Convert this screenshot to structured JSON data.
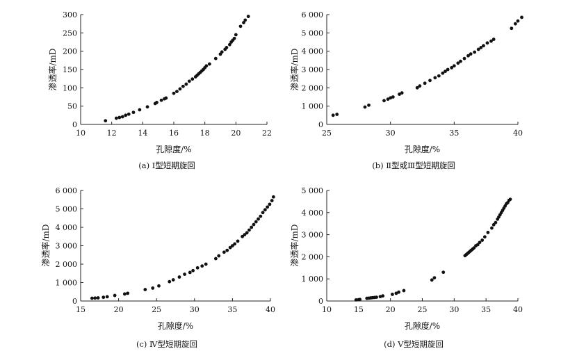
{
  "chart_data": [
    {
      "type": "scatter",
      "caption": "(a) Ⅰ型短期旋回",
      "xlabel": "孔隙度/%",
      "ylabel": "渗透率/mD",
      "xlim": [
        10,
        22
      ],
      "ylim": [
        0,
        300
      ],
      "xticks": [
        "10",
        "12",
        "14",
        "16",
        "18",
        "20",
        "22"
      ],
      "yticks": [
        "0",
        "50",
        "100",
        "150",
        "200",
        "250",
        "300"
      ],
      "series": [
        {
          "x": [
            11.6,
            12.3,
            12.5,
            12.7,
            12.9,
            13.1,
            13.4,
            13.8,
            14.3,
            14.8,
            14.9,
            15.2,
            15.4,
            15.5,
            16.0,
            16.2,
            16.4,
            16.6,
            16.8,
            17.0,
            17.2,
            17.4,
            17.5,
            17.6,
            17.7,
            17.8,
            17.9,
            18.0,
            18.1,
            18.3,
            18.7,
            19.0,
            19.1,
            19.3,
            19.4,
            19.6,
            19.7,
            19.8,
            19.9,
            20.0,
            20.3,
            20.5,
            20.6,
            20.8
          ],
          "y": [
            10,
            17,
            19,
            21,
            25,
            28,
            33,
            40,
            48,
            57,
            60,
            66,
            70,
            72,
            85,
            90,
            97,
            104,
            110,
            118,
            124,
            130,
            134,
            138,
            142,
            146,
            150,
            155,
            160,
            165,
            180,
            192,
            198,
            205,
            210,
            218,
            225,
            230,
            235,
            245,
            268,
            278,
            285,
            295
          ]
        }
      ]
    },
    {
      "type": "scatter",
      "caption": "(b) Ⅱ型或Ⅲ型短期旋回",
      "xlabel": "孔隙度/%",
      "ylabel": "渗透率/mD",
      "xlim": [
        25,
        40
      ],
      "ylim": [
        0,
        6000
      ],
      "xticks": [
        "25",
        "30",
        "35",
        "40"
      ],
      "yticks": [
        "0",
        "1 000",
        "2 000",
        "3 000",
        "4 000",
        "5 000",
        "6 000"
      ],
      "series": [
        {
          "x": [
            25.5,
            25.8,
            28.0,
            28.3,
            29.5,
            29.8,
            30.0,
            30.2,
            30.7,
            30.9,
            32.1,
            32.3,
            32.7,
            33.1,
            33.5,
            33.8,
            34.1,
            34.3,
            34.5,
            34.8,
            35.0,
            35.3,
            35.5,
            35.8,
            36.1,
            36.3,
            36.6,
            36.9,
            37.1,
            37.3,
            37.6,
            37.9,
            38.1,
            39.5,
            39.8,
            40.0,
            40.3
          ],
          "y": [
            500,
            550,
            950,
            1050,
            1300,
            1380,
            1450,
            1500,
            1650,
            1720,
            2000,
            2100,
            2250,
            2400,
            2550,
            2650,
            2800,
            2900,
            3000,
            3100,
            3200,
            3350,
            3450,
            3600,
            3750,
            3850,
            3950,
            4100,
            4200,
            4300,
            4450,
            4550,
            4650,
            5250,
            5500,
            5650,
            5850
          ]
        }
      ]
    },
    {
      "type": "scatter",
      "caption": "(c) Ⅳ型短期旋回",
      "xlabel": "孔隙度/%",
      "ylabel": "渗透率/mD",
      "xlim": [
        15,
        40
      ],
      "ylim": [
        0,
        6000
      ],
      "xticks": [
        "15",
        "20",
        "25",
        "30",
        "35",
        "40"
      ],
      "yticks": [
        "0",
        "1 000",
        "2 000",
        "3 000",
        "4 000",
        "5 000",
        "6 000"
      ],
      "series": [
        {
          "x": [
            16.5,
            16.9,
            17.3,
            18.0,
            18.5,
            19.5,
            20.8,
            21.2,
            23.5,
            24.5,
            25.3,
            26.7,
            27.2,
            28.0,
            28.7,
            29.4,
            29.8,
            30.4,
            31.0,
            31.5,
            32.8,
            33.2,
            33.9,
            34.3,
            34.7,
            35.0,
            35.3,
            35.7,
            36.3,
            36.6,
            36.9,
            37.2,
            37.5,
            37.8,
            38.1,
            38.4,
            38.7,
            39.0,
            39.3,
            39.6,
            39.9,
            40.2,
            40.4
          ],
          "y": [
            150,
            160,
            170,
            200,
            230,
            300,
            380,
            420,
            620,
            700,
            820,
            1050,
            1150,
            1300,
            1450,
            1550,
            1650,
            1800,
            1900,
            2000,
            2300,
            2450,
            2650,
            2750,
            2900,
            3000,
            3100,
            3250,
            3500,
            3600,
            3700,
            3850,
            4000,
            4150,
            4300,
            4450,
            4600,
            4800,
            4950,
            5100,
            5250,
            5450,
            5650
          ]
        }
      ]
    },
    {
      "type": "scatter",
      "caption": "(d) Ⅴ型短期旋回",
      "xlabel": "孔隙度/%",
      "ylabel": "渗透率/mD",
      "xlim": [
        10,
        40
      ],
      "ylim": [
        0,
        5000
      ],
      "xticks": [
        "10",
        "15",
        "20",
        "25",
        "30",
        "35",
        "40"
      ],
      "yticks": [
        "0",
        "1 000",
        "2 000",
        "3 000",
        "4 000",
        "5 000"
      ],
      "series": [
        {
          "x": [
            14.6,
            15.0,
            15.2,
            16.3,
            16.6,
            16.9,
            17.2,
            17.5,
            17.8,
            18.4,
            18.8,
            20.3,
            20.9,
            21.3,
            22.1,
            26.5,
            26.9,
            28.3,
            31.7,
            31.9,
            32.1,
            32.3,
            32.5,
            32.7,
            32.9,
            33.1,
            33.4,
            33.7,
            34.0,
            34.4,
            34.8,
            35.3,
            35.9,
            36.2,
            36.5,
            36.8,
            37.0,
            37.2,
            37.4,
            37.6,
            37.8,
            38.0,
            38.2,
            38.4,
            38.6,
            38.8
          ],
          "y": [
            50,
            60,
            70,
            120,
            130,
            140,
            150,
            160,
            170,
            200,
            230,
            300,
            350,
            400,
            470,
            950,
            1050,
            1300,
            2050,
            2100,
            2150,
            2200,
            2250,
            2300,
            2350,
            2400,
            2500,
            2550,
            2650,
            2750,
            2900,
            3100,
            3300,
            3450,
            3550,
            3700,
            3800,
            3900,
            4000,
            4100,
            4200,
            4300,
            4400,
            4450,
            4550,
            4600
          ]
        }
      ]
    }
  ]
}
